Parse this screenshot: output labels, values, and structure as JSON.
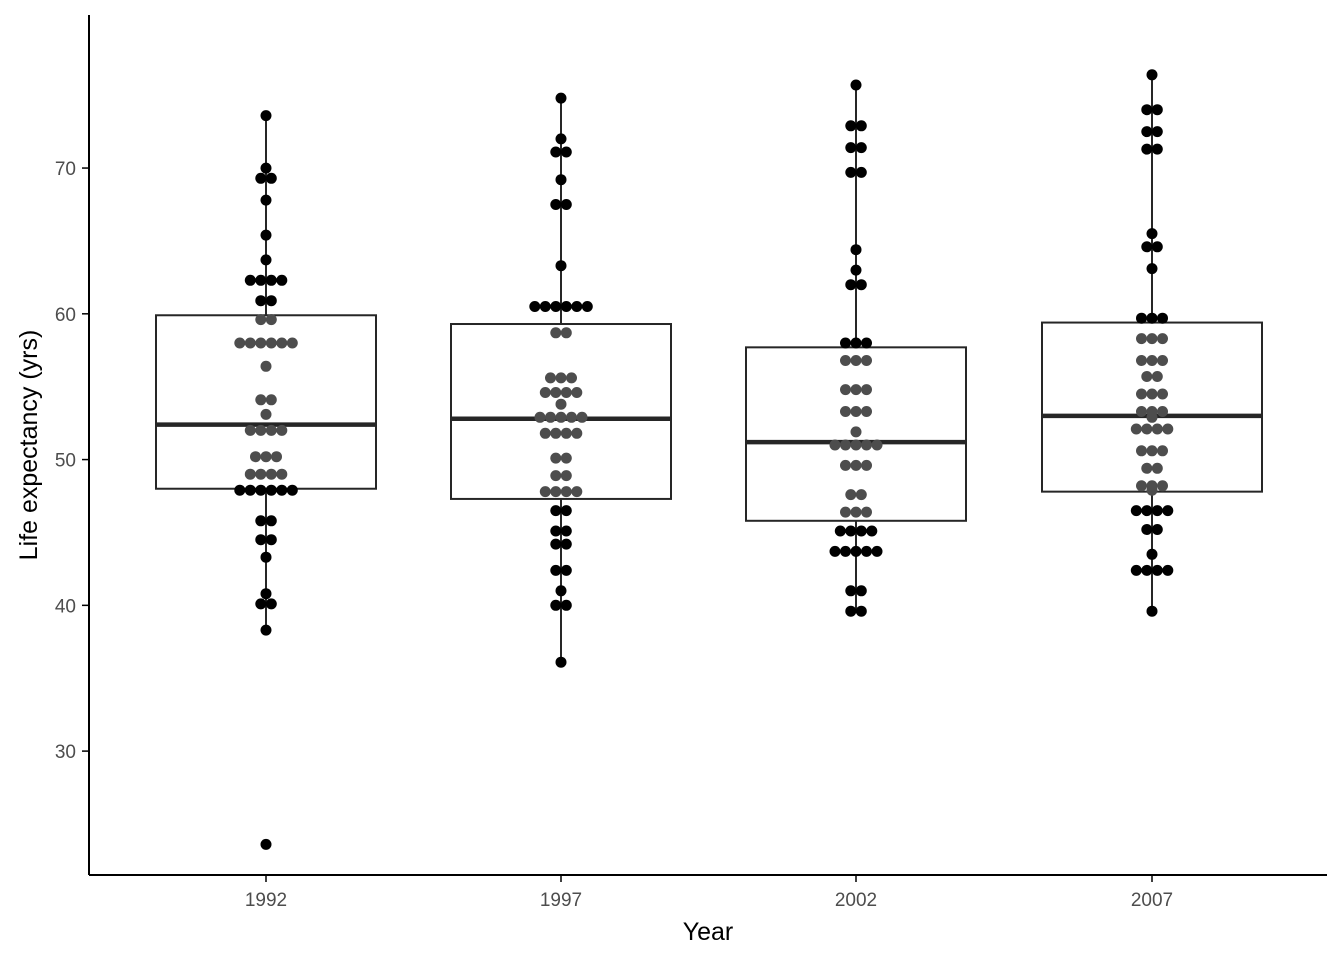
{
  "chart_data": {
    "type": "box",
    "title": "",
    "xlabel": "Year",
    "ylabel": "Life expectancy (yrs)",
    "categories": [
      "1992",
      "1997",
      "2002",
      "2007"
    ],
    "yticks": [
      30,
      40,
      50,
      60,
      70
    ],
    "ylim": [
      21.5,
      80.5
    ],
    "grid": false,
    "legend": "none",
    "boxes": [
      {
        "category": "1992",
        "q1": 48.0,
        "median": 52.4,
        "q3": 59.9,
        "whisker_low": 38.3,
        "whisker_high": 73.6
      },
      {
        "category": "1997",
        "q1": 47.3,
        "median": 52.8,
        "q3": 59.3,
        "whisker_low": 36.1,
        "whisker_high": 74.8
      },
      {
        "category": "2002",
        "q1": 45.8,
        "median": 51.2,
        "q3": 57.7,
        "whisker_low": 39.6,
        "whisker_high": 75.7
      },
      {
        "category": "2007",
        "q1": 47.8,
        "median": 53.0,
        "q3": 59.4,
        "whisker_low": 39.6,
        "whisker_high": 76.4
      }
    ],
    "points": {
      "1992": [
        23.6,
        38.3,
        40.1,
        40.1,
        40.8,
        43.3,
        44.5,
        44.5,
        45.8,
        45.8,
        47.9,
        47.9,
        47.9,
        47.9,
        47.9,
        47.9,
        49.0,
        49.0,
        49.0,
        49.0,
        50.2,
        50.2,
        50.2,
        52.0,
        52.0,
        52.0,
        52.0,
        53.1,
        54.1,
        54.1,
        56.4,
        58.0,
        58.0,
        58.0,
        58.0,
        58.0,
        58.0,
        59.6,
        59.6,
        60.9,
        60.9,
        62.3,
        62.3,
        62.3,
        62.3,
        63.7,
        65.4,
        67.8,
        69.3,
        69.3,
        70.0,
        73.6
      ],
      "1997": [
        36.1,
        40.0,
        40.0,
        41.0,
        42.4,
        42.4,
        44.2,
        44.2,
        45.1,
        45.1,
        46.5,
        46.5,
        47.8,
        47.8,
        47.8,
        47.8,
        48.9,
        48.9,
        50.1,
        50.1,
        51.8,
        51.8,
        51.8,
        51.8,
        52.9,
        52.9,
        52.9,
        52.9,
        52.9,
        53.8,
        54.6,
        54.6,
        54.6,
        54.6,
        55.6,
        55.6,
        55.6,
        58.7,
        58.7,
        60.5,
        60.5,
        60.5,
        60.5,
        60.5,
        60.5,
        63.3,
        67.5,
        67.5,
        69.2,
        71.1,
        71.1,
        72.0,
        74.8
      ],
      "2002": [
        39.6,
        39.6,
        41.0,
        41.0,
        43.7,
        43.7,
        43.7,
        43.7,
        43.7,
        45.1,
        45.1,
        45.1,
        45.1,
        46.4,
        46.4,
        46.4,
        47.6,
        47.6,
        49.6,
        49.6,
        49.6,
        51.0,
        51.0,
        51.0,
        51.0,
        51.0,
        51.9,
        53.3,
        53.3,
        53.3,
        54.8,
        54.8,
        54.8,
        56.8,
        56.8,
        56.8,
        58.0,
        58.0,
        58.0,
        62.0,
        62.0,
        63.0,
        64.4,
        69.7,
        69.7,
        71.4,
        71.4,
        72.9,
        72.9,
        75.7
      ],
      "2007": [
        39.6,
        42.4,
        42.4,
        42.4,
        42.4,
        43.5,
        45.2,
        45.2,
        46.5,
        46.5,
        46.5,
        46.5,
        47.9,
        48.2,
        48.2,
        48.2,
        49.4,
        49.4,
        50.6,
        50.6,
        50.6,
        52.1,
        52.1,
        52.1,
        52.1,
        52.9,
        53.3,
        53.3,
        53.3,
        54.5,
        54.5,
        54.5,
        55.7,
        55.7,
        56.8,
        56.8,
        56.8,
        58.3,
        58.3,
        58.3,
        59.7,
        59.7,
        59.7,
        63.1,
        64.6,
        64.6,
        65.5,
        71.3,
        71.3,
        72.5,
        72.5,
        74.0,
        74.0,
        76.4
      ]
    },
    "colors": {
      "dot_outside_box": "#000000",
      "dot_inside_box": "#4d4d4d",
      "box_stroke": "#262626",
      "axis": "#000000",
      "tick_label": "#4d4d4d"
    }
  }
}
